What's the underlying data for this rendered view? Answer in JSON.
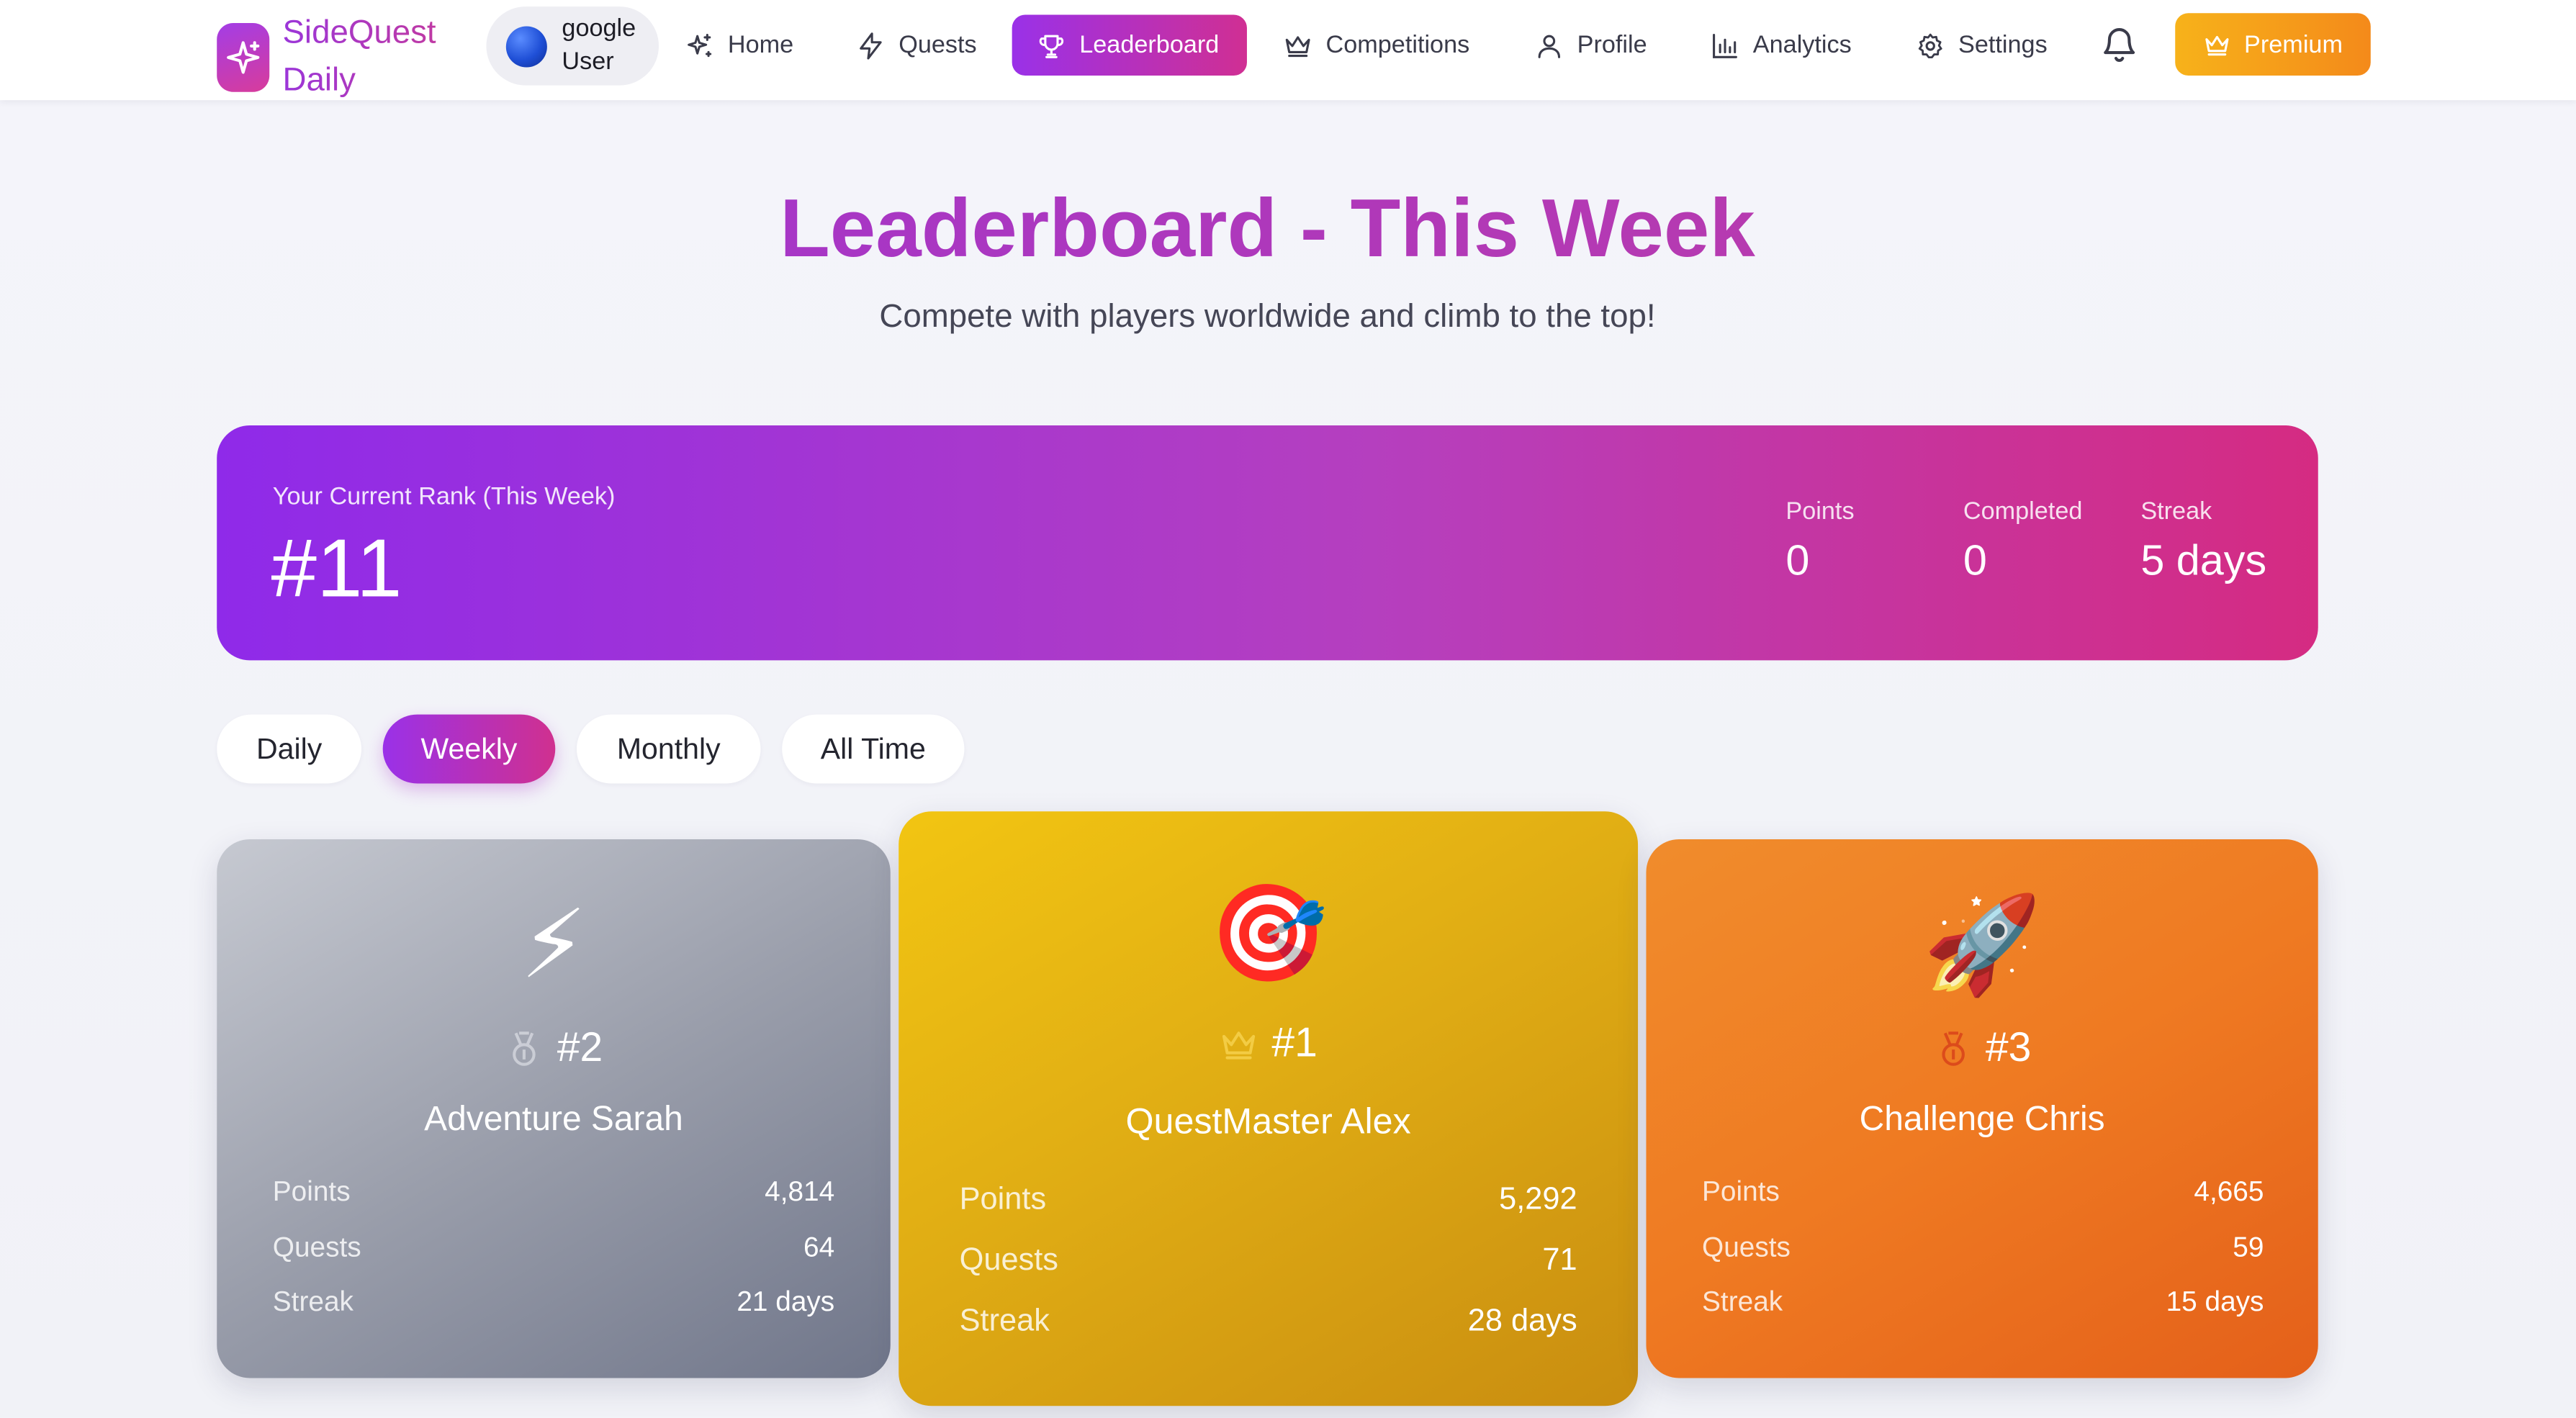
{
  "brand": {
    "name_line1": "SideQuest",
    "name_line2": "Daily"
  },
  "user": {
    "line1": "google",
    "line2": "User"
  },
  "nav": {
    "items": [
      {
        "label": "Home",
        "icon": "sparkles-icon"
      },
      {
        "label": "Quests",
        "icon": "zap-icon"
      },
      {
        "label": "Leaderboard",
        "icon": "trophy-icon",
        "active": true
      },
      {
        "label": "Competitions",
        "icon": "crown-icon"
      },
      {
        "label": "Profile",
        "icon": "user-icon"
      },
      {
        "label": "Analytics",
        "icon": "bar-chart-icon"
      },
      {
        "label": "Settings",
        "icon": "gear-icon"
      }
    ],
    "notifications_icon": "bell-icon",
    "premium_label": "Premium",
    "premium_icon": "crown-icon"
  },
  "page": {
    "title": "Leaderboard - This Week",
    "subtitle": "Compete with players worldwide and climb to the top!"
  },
  "rank_banner": {
    "label": "Your Current Rank (This Week)",
    "rank": "#11",
    "stats": [
      {
        "label": "Points",
        "value": "0"
      },
      {
        "label": "Completed",
        "value": "0"
      },
      {
        "label": "Streak",
        "value": "5 days"
      }
    ]
  },
  "filters": {
    "tabs": [
      "Daily",
      "Weekly",
      "Monthly",
      "All Time"
    ],
    "active": "Weekly"
  },
  "podium": [
    {
      "place": "#2",
      "emoji": "⚡",
      "medal": "medal-icon",
      "name": "Adventure Sarah",
      "points_label": "Points",
      "points": "4,814",
      "quests_label": "Quests",
      "quests": "64",
      "streak_label": "Streak",
      "streak": "21 days"
    },
    {
      "place": "#1",
      "emoji": "🎯",
      "medal": "crown-icon",
      "name": "QuestMaster Alex",
      "points_label": "Points",
      "points": "5,292",
      "quests_label": "Quests",
      "quests": "71",
      "streak_label": "Streak",
      "streak": "28 days"
    },
    {
      "place": "#3",
      "emoji": "🚀",
      "medal": "medal-icon",
      "name": "Challenge Chris",
      "points_label": "Points",
      "points": "4,665",
      "quests_label": "Quests",
      "quests": "59",
      "streak_label": "Streak",
      "streak": "15 days"
    }
  ],
  "colors": {
    "accent_start": "#9a31e8",
    "accent_end": "#d0308f",
    "premium": "#f7a41a",
    "silver": "#9a9eab",
    "gold": "#e0ad14",
    "bronze": "#ef7a22"
  }
}
